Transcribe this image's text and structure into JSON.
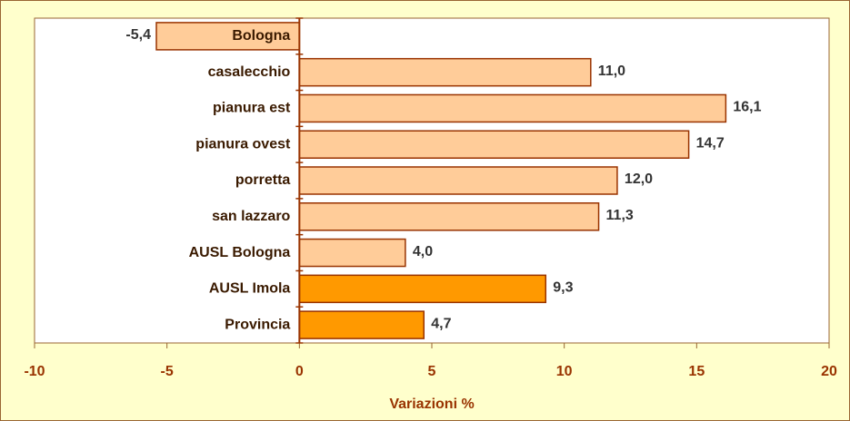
{
  "chart_data": {
    "type": "hbar",
    "xlabel": "Variazioni %",
    "categories": [
      "Bologna",
      "casalecchio",
      "pianura est",
      "pianura ovest",
      "porretta",
      "san lazzaro",
      "AUSL Bologna",
      "AUSL Imola",
      "Provincia"
    ],
    "values": [
      -5.4,
      11.0,
      16.1,
      14.7,
      12.0,
      11.3,
      4.0,
      9.3,
      4.7
    ],
    "value_labels": [
      "-5,4",
      "11,0",
      "16,1",
      "14,7",
      "12,0",
      "11,3",
      "4,0",
      "9,3",
      "4,7"
    ],
    "colors": [
      "#ffcc99",
      "#ffcc99",
      "#ffcc99",
      "#ffcc99",
      "#ffcc99",
      "#ffcc99",
      "#ffcc99",
      "#ff9900",
      "#ff9900"
    ],
    "xlim": [
      -10,
      20
    ],
    "xticks": [
      -10,
      -5,
      0,
      5,
      10,
      15,
      20
    ],
    "grid": false
  }
}
